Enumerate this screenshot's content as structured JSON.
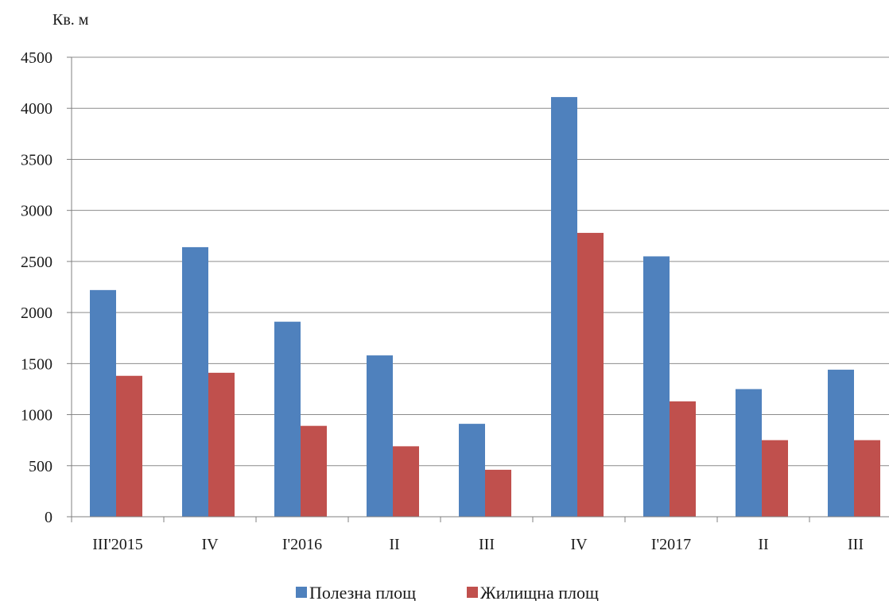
{
  "chart_data": {
    "type": "bar",
    "title": "",
    "ylabel": "Кв. м",
    "xlabel": "",
    "ylim": [
      0,
      4500
    ],
    "yticks": [
      0,
      500,
      1000,
      1500,
      2000,
      2500,
      3000,
      3500,
      4000,
      4500
    ],
    "categories": [
      "III'2015",
      "IV",
      "I'2016",
      "II",
      "III",
      "IV",
      "I'2017",
      "II",
      "III"
    ],
    "series": [
      {
        "name": "Полезна площ",
        "color": "#4F81BD",
        "values": [
          2220,
          2640,
          1910,
          1580,
          910,
          4110,
          2550,
          1250,
          1440
        ]
      },
      {
        "name": "Жилищна площ",
        "color": "#C0504D",
        "values": [
          1380,
          1410,
          890,
          690,
          460,
          2780,
          1130,
          750,
          750
        ]
      }
    ],
    "grid": true,
    "legend": "bottom"
  }
}
